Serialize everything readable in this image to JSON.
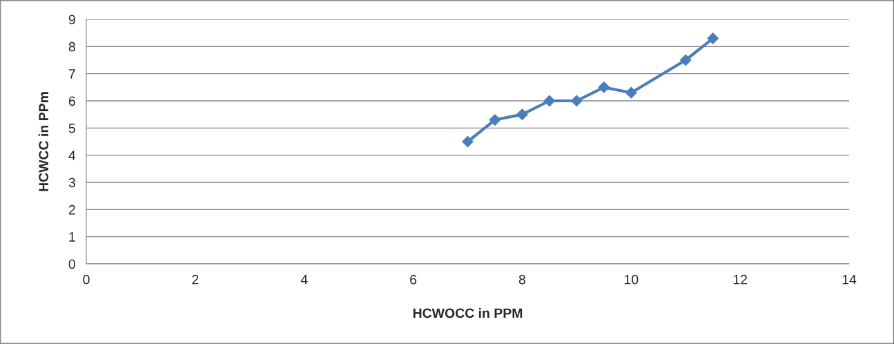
{
  "chart_data": {
    "type": "line",
    "xlabel": "HCWOCC in PPM",
    "ylabel": "HCWCC in PPm",
    "series": [
      {
        "color": "#4a7ebb",
        "x": [
          7,
          7.5,
          8,
          8.5,
          9,
          9.5,
          10,
          11,
          11.5
        ],
        "values": [
          4.5,
          5.3,
          5.5,
          6.0,
          6.0,
          6.5,
          6.3,
          7.5,
          8.3
        ]
      }
    ],
    "xlim": [
      0,
      14
    ],
    "xticks": [
      0,
      2,
      4,
      6,
      8,
      10,
      12,
      14
    ],
    "ylim": [
      0,
      9
    ],
    "yticks": [
      0,
      1,
      2,
      3,
      4,
      5,
      6,
      7,
      8,
      9
    ],
    "grid": "y",
    "marker": "diamond",
    "line_style": "solid",
    "legend": false
  }
}
